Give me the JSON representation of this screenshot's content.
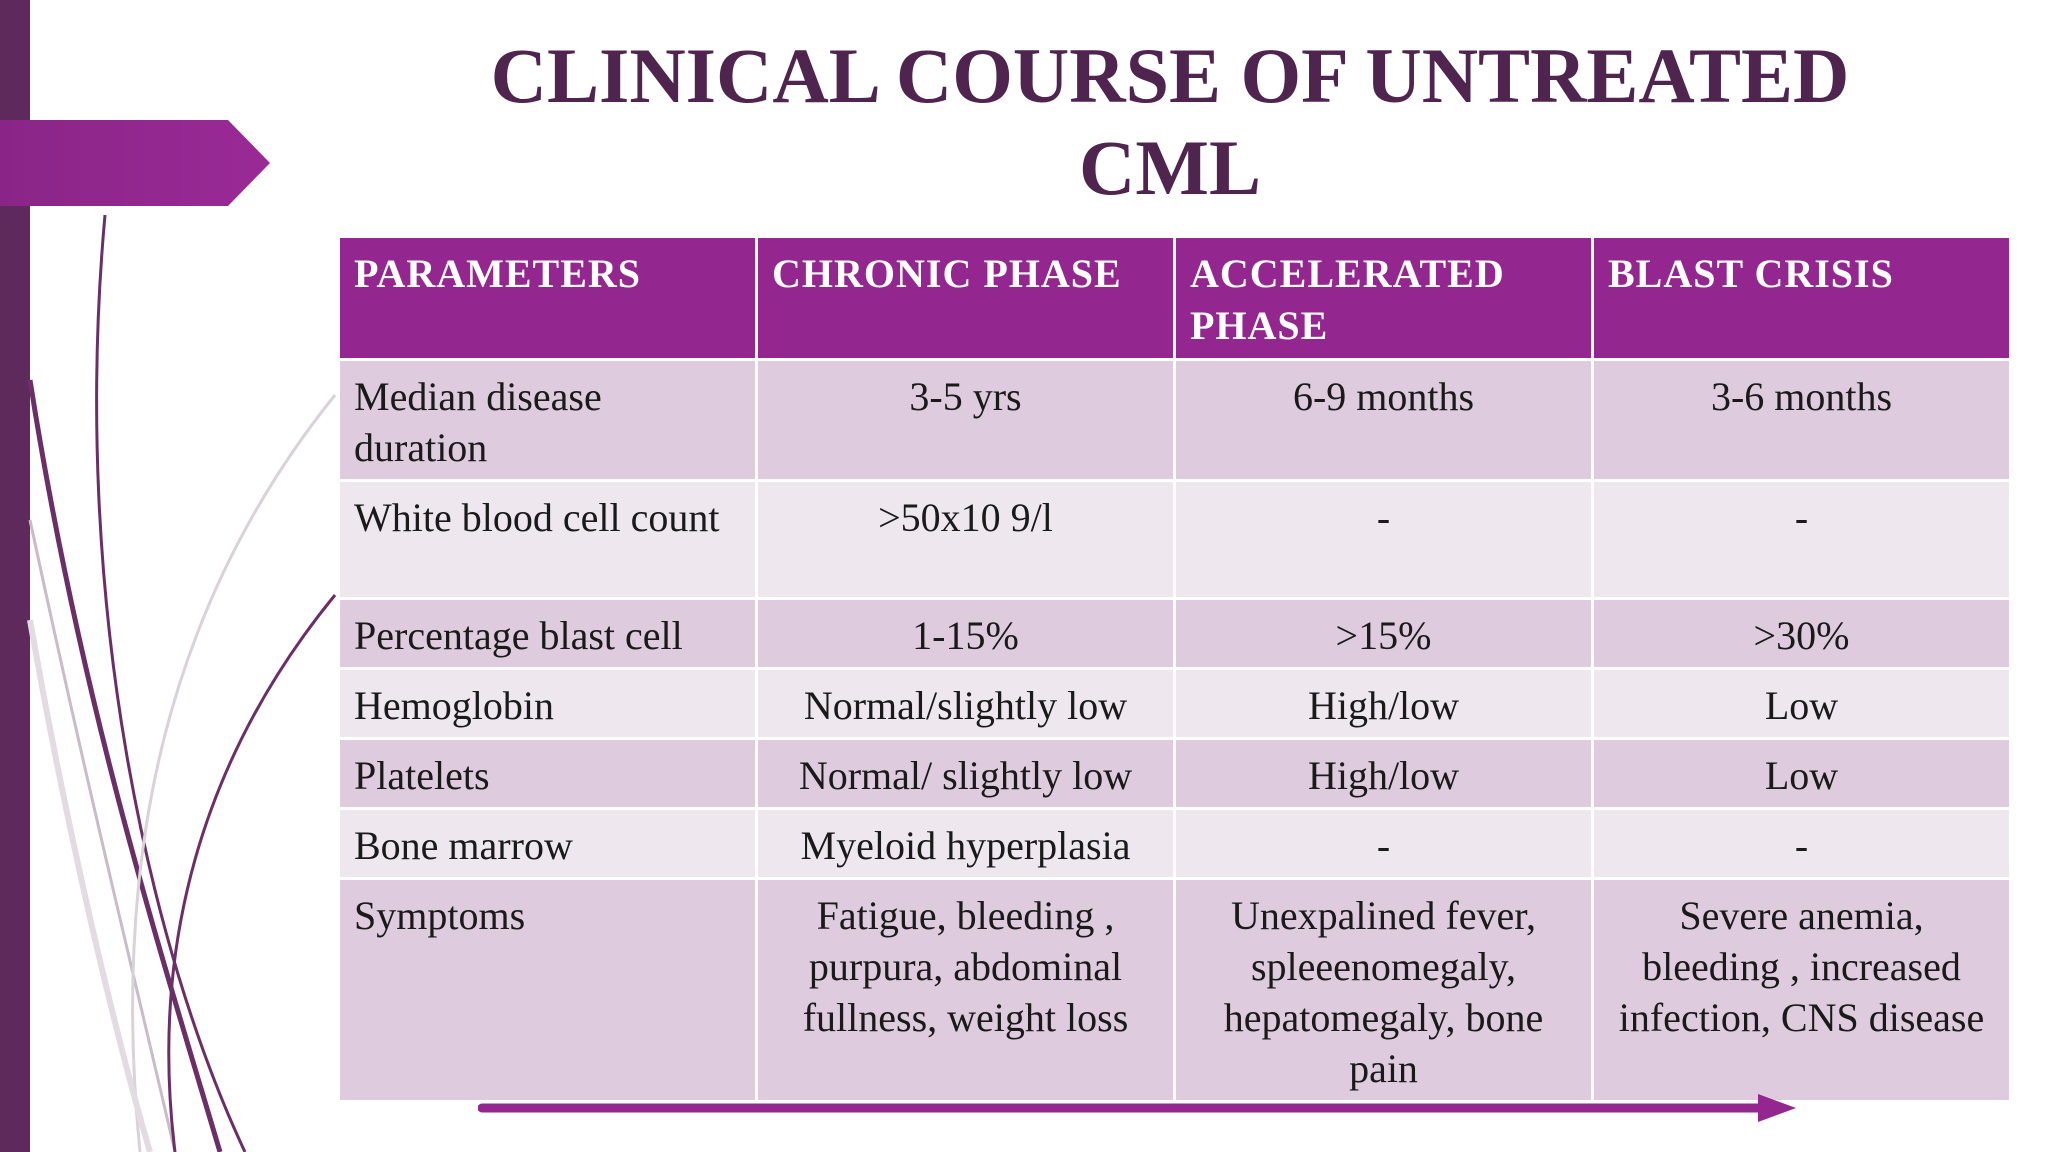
{
  "slide": {
    "title": "CLINICAL COURSE OF UNTREATED CML"
  },
  "table": {
    "headers": [
      "PARAMETERS",
      "CHRONIC PHASE",
      "ACCELERATED PHASE",
      "BLAST CRISIS"
    ],
    "rows": [
      [
        "Median disease duration",
        "3-5 yrs",
        "6-9 months",
        "3-6 months"
      ],
      [
        "White blood cell count",
        ">50x10 9/l",
        "-",
        "-"
      ],
      [
        "Percentage blast cell",
        "1-15%",
        ">15%",
        ">30%"
      ],
      [
        "Hemoglobin",
        "Normal/slightly low",
        "High/low",
        "Low"
      ],
      [
        "Platelets",
        "Normal/ slightly low",
        "High/low",
        "Low"
      ],
      [
        "Bone marrow",
        "Myeloid hyperplasia",
        "-",
        "-"
      ],
      [
        "Symptoms",
        "Fatigue, bleeding , purpura, abdominal fullness, weight loss",
        "Unexpalined fever, spleeenomegaly, hepatomegaly, bone pain",
        "Severe anemia, bleeding , increased infection, CNS disease"
      ]
    ]
  },
  "colors": {
    "header_purple": "#93268f",
    "title_color": "#4f2550",
    "row_dark": "#decbdd",
    "row_light": "#efe7ee",
    "accent_bar": "#5e2a5c"
  },
  "decorations": {
    "progression_arrow": "right-arrow-icon"
  }
}
